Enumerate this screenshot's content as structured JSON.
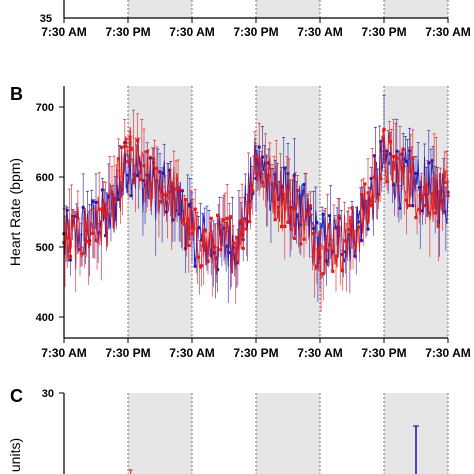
{
  "colors": {
    "series_blue": "#1f1fb8",
    "series_red": "#e01c1c",
    "night_shade": "#e6e6e6",
    "axis": "#000000"
  },
  "panels": {
    "A": {
      "letter": "",
      "ytick_bottom": "35"
    },
    "B": {
      "letter": "B"
    },
    "C": {
      "letter": "C",
      "ylabel_fragment": "units)",
      "ytick_top": "30"
    }
  },
  "chart_data": [
    {
      "type": "line",
      "panel": "A",
      "title": "",
      "ylabel": "",
      "x_tick_labels": [
        "7:30 AM",
        "7:30 PM",
        "7:30 AM",
        "7:30 PM",
        "7:30 AM",
        "7:30 PM",
        "7:30 AM"
      ],
      "y_ticks_visible": [
        35
      ],
      "dark_periods": [
        [
          12,
          24
        ],
        [
          36,
          48
        ],
        [
          60,
          72
        ]
      ],
      "xlim_hours": [
        0,
        72
      ],
      "grid": false
    },
    {
      "type": "line",
      "panel": "B",
      "title": "",
      "xlabel": "",
      "ylabel": "Heart Rate (bpm)",
      "ylim": [
        370,
        730
      ],
      "yticks": [
        400,
        500,
        600,
        700
      ],
      "x_tick_labels": [
        "7:30 AM",
        "7:30 PM",
        "7:30 AM",
        "7:30 PM",
        "7:30 AM",
        "7:30 PM",
        "7:30 AM"
      ],
      "xlim_hours": [
        0,
        72
      ],
      "dark_periods": [
        [
          12,
          24
        ],
        [
          36,
          48
        ],
        [
          60,
          72
        ]
      ],
      "grid": false,
      "legend": "none",
      "error_bars": true,
      "series": [
        {
          "color": "blue",
          "x": [
            0,
            3,
            6,
            9,
            12,
            15,
            18,
            21,
            24,
            27,
            30,
            33,
            36,
            39,
            42,
            45,
            48,
            51,
            54,
            57,
            60,
            63,
            66,
            69,
            72
          ],
          "y": [
            505,
            520,
            535,
            545,
            625,
            590,
            580,
            575,
            520,
            505,
            500,
            515,
            620,
            590,
            570,
            545,
            505,
            510,
            520,
            560,
            625,
            600,
            590,
            580,
            570
          ]
        },
        {
          "color": "red",
          "x": [
            0,
            3,
            6,
            9,
            12,
            15,
            18,
            21,
            24,
            27,
            30,
            33,
            36,
            39,
            42,
            45,
            48,
            51,
            54,
            57,
            60,
            63,
            66,
            69,
            72
          ],
          "y": [
            500,
            515,
            530,
            550,
            635,
            595,
            585,
            570,
            515,
            500,
            505,
            510,
            625,
            585,
            565,
            540,
            500,
            505,
            515,
            555,
            630,
            605,
            585,
            575,
            565
          ]
        }
      ]
    },
    {
      "type": "line",
      "panel": "C",
      "title": "",
      "ylabel": "units)",
      "yticks_visible": [
        30
      ],
      "dark_periods": [
        [
          12,
          24
        ],
        [
          36,
          48
        ],
        [
          60,
          72
        ]
      ],
      "xlim_hours": [
        0,
        72
      ],
      "grid": false
    }
  ]
}
